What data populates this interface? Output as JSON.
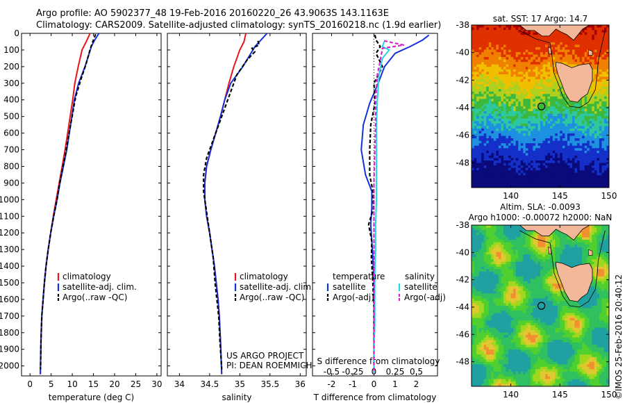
{
  "header": {
    "line1": "Argo profile: AO 5902377_48 19-Feb-2016 20160220_26 43.9063S 143.1163E",
    "line2": "Climatology: CARS2009. Satellite-adjusted climatology: synTS_20160218.nc (1.9d earlier)"
  },
  "colors": {
    "climatology": "#e8141c",
    "satellite": "#1530d8",
    "argo": "#000000",
    "satellite_s": "#20d8e8",
    "argo_s": "#e020d0"
  },
  "chart_data": [
    {
      "id": "temperature",
      "type": "line",
      "xlabel": "temperature (deg C)",
      "ylabel": "",
      "xlim": [
        -2,
        31
      ],
      "ylim": [
        2060,
        0
      ],
      "y_reversed": true,
      "xticks": [
        0,
        5,
        10,
        15,
        20,
        25,
        30
      ],
      "yticks": [
        0,
        100,
        200,
        300,
        400,
        500,
        600,
        700,
        800,
        900,
        1000,
        1100,
        1200,
        1300,
        1400,
        1500,
        1600,
        1700,
        1800,
        1900,
        2000
      ],
      "legend": [
        "climatology",
        "satellite-adj. clim.",
        "Argo(..raw -QC)"
      ],
      "series": [
        {
          "name": "climatology",
          "style": "solid",
          "color": "#e8141c",
          "x": [
            14.2,
            13.3,
            12.3,
            11.4,
            10.6,
            10.1,
            9.5,
            8.9,
            8.3,
            7.6,
            6.9,
            6.2,
            5.5,
            4.9,
            4.3,
            3.8,
            3.4,
            3.1,
            2.8,
            2.6,
            2.45
          ],
          "y": [
            0,
            50,
            100,
            200,
            300,
            400,
            500,
            600,
            700,
            800,
            900,
            1000,
            1100,
            1200,
            1300,
            1400,
            1500,
            1600,
            1700,
            1850,
            2050
          ]
        },
        {
          "name": "satellite-adj. clim.",
          "style": "solid",
          "color": "#1530d8",
          "x": [
            16.3,
            15.3,
            14.5,
            13.0,
            11.5,
            10.5,
            9.9,
            9.3,
            8.7,
            7.9,
            7.1,
            6.4,
            5.6,
            4.9,
            4.3,
            3.8,
            3.4,
            3.1,
            2.8,
            2.6,
            2.45
          ],
          "y": [
            0,
            40,
            80,
            200,
            300,
            400,
            500,
            600,
            700,
            800,
            900,
            1000,
            1100,
            1200,
            1300,
            1400,
            1500,
            1600,
            1700,
            1850,
            2050
          ]
        },
        {
          "name": "Argo(..raw -QC)",
          "style": "dashed",
          "color": "#000000",
          "x": [
            15.5,
            15.0,
            14.3,
            13.3,
            12.0,
            10.8,
            10.1,
            9.4,
            8.7,
            7.9,
            7.1,
            6.4,
            5.6,
            4.9,
            4.3,
            3.8,
            3.4,
            3.1,
            2.8,
            2.6,
            2.5
          ],
          "y": [
            5,
            40,
            90,
            180,
            280,
            380,
            480,
            580,
            680,
            790,
            890,
            1000,
            1100,
            1200,
            1300,
            1400,
            1500,
            1600,
            1700,
            1850,
            2020
          ]
        }
      ]
    },
    {
      "id": "salinity",
      "type": "line",
      "xlabel": "salinity",
      "ylabel": "",
      "xlim": [
        33.8,
        36.1
      ],
      "ylim": [
        2060,
        0
      ],
      "y_reversed": true,
      "xticks": [
        34,
        34.5,
        35,
        35.5,
        36
      ],
      "legend": [
        "climatology",
        "satellite-adj. clim.",
        "Argo(..raw -QC)"
      ],
      "annotations": [
        "US ARGO PROJECT",
        "PI: DEAN ROEMMICH"
      ],
      "series": [
        {
          "name": "climatology",
          "style": "solid",
          "color": "#e8141c",
          "x": [
            35.1,
            35.07,
            35.0,
            34.9,
            34.82,
            34.75,
            34.68,
            34.6,
            34.52,
            34.45,
            34.42,
            34.42,
            34.45,
            34.5,
            34.54,
            34.58,
            34.61,
            34.64,
            34.66,
            34.68,
            34.7
          ],
          "y": [
            0,
            50,
            100,
            200,
            300,
            400,
            500,
            600,
            700,
            800,
            900,
            1000,
            1100,
            1200,
            1300,
            1400,
            1500,
            1600,
            1700,
            1850,
            2050
          ]
        },
        {
          "name": "satellite-adj. clim.",
          "style": "solid",
          "color": "#1530d8",
          "x": [
            35.45,
            35.35,
            35.25,
            35.05,
            34.85,
            34.75,
            34.68,
            34.6,
            34.52,
            34.45,
            34.42,
            34.42,
            34.45,
            34.5,
            34.54,
            34.58,
            34.61,
            34.64,
            34.66,
            34.68,
            34.7
          ],
          "y": [
            0,
            40,
            80,
            200,
            300,
            400,
            500,
            600,
            700,
            800,
            900,
            1000,
            1100,
            1200,
            1300,
            1400,
            1500,
            1600,
            1700,
            1850,
            2050
          ]
        },
        {
          "name": "Argo(..raw -QC)",
          "style": "dashed",
          "color": "#000000",
          "x": [
            35.3,
            35.32,
            35.2,
            35.25,
            35.12,
            34.95,
            34.85,
            34.75,
            34.65,
            34.55,
            34.45,
            34.4,
            34.4,
            34.44,
            34.48,
            34.52,
            34.56,
            34.59,
            34.62,
            34.65,
            34.67,
            34.7
          ],
          "y": [
            45,
            70,
            90,
            110,
            160,
            250,
            350,
            450,
            550,
            650,
            750,
            850,
            950,
            1050,
            1150,
            1250,
            1350,
            1500,
            1600,
            1700,
            1850,
            2020
          ]
        }
      ]
    },
    {
      "id": "difference",
      "type": "line",
      "xlabel": "T difference from climatology",
      "xlabel2": "S difference from climatology",
      "xlim": [
        -2.9,
        3.0
      ],
      "xlim2": [
        -0.725,
        0.75
      ],
      "ylim": [
        2060,
        0
      ],
      "y_reversed": true,
      "xticks": [
        -2,
        -1,
        0,
        1,
        2
      ],
      "xtick_labels": [
        "-2",
        "-1",
        "0",
        "1",
        "2"
      ],
      "xticks2": [
        -0.5,
        -0.25,
        0,
        0.25,
        0.5
      ],
      "xtick_labels2": [
        "-0.5",
        "-0.25",
        "0",
        "0.25",
        "0.5"
      ],
      "legend_headers": [
        "temperature",
        "salinity"
      ],
      "legend": [
        "satellite",
        "Argo(-adj)",
        "satellite",
        "Argo(-adj)"
      ],
      "series": [
        {
          "name": "satellite",
          "group": "temperature",
          "style": "solid",
          "color": "#1530d8",
          "x": [
            2.6,
            2.3,
            1.7,
            1.0,
            0.5,
            0.2,
            -0.2,
            -0.5,
            -0.6,
            -0.4,
            -0.1,
            -0.1,
            -0.15,
            -0.1,
            -0.05,
            0,
            0,
            0,
            0,
            0
          ],
          "y": [
            10,
            40,
            80,
            120,
            200,
            300,
            420,
            550,
            700,
            850,
            950,
            1050,
            1150,
            1250,
            1350,
            1500,
            1650,
            1800,
            1950,
            2050
          ]
        },
        {
          "name": "Argo(-adj)",
          "group": "temperature",
          "style": "dashed",
          "color": "#000000",
          "x": [
            0.05,
            0.1,
            0.3,
            0.1,
            0.4,
            0.0,
            0.05,
            -0.15,
            -0.2,
            -0.2,
            -0.05,
            -0.02,
            -0.25,
            -0.1,
            -0.12,
            -0.05,
            0,
            0,
            0,
            0
          ],
          "y": [
            10,
            40,
            80,
            120,
            200,
            300,
            420,
            550,
            700,
            850,
            950,
            1050,
            1150,
            1250,
            1350,
            1500,
            1650,
            1800,
            1950,
            2050
          ]
        },
        {
          "name": "satellite",
          "group": "salinity",
          "style": "solid",
          "color": "#20d8e8",
          "x": [
            0.12,
            0.1,
            0.18,
            0.1,
            0.06,
            0.04,
            0.03,
            0.03,
            0.03,
            0.03,
            0.02,
            0.02,
            0.01,
            0.01,
            0.01,
            0.0,
            0.0
          ],
          "y": [
            50,
            80,
            100,
            150,
            250,
            400,
            550,
            700,
            850,
            1000,
            1150,
            1300,
            1450,
            1600,
            1750,
            1900,
            2050
          ]
        },
        {
          "name": "Argo(-adj)",
          "group": "salinity",
          "style": "dashed",
          "color": "#e020d0",
          "x": [
            0.12,
            0.35,
            0.1,
            0.08,
            0.04,
            0.02,
            0.02,
            0.01,
            0.0,
            0.0,
            0.0,
            0.0,
            0.0,
            0.0,
            0.0
          ],
          "y": [
            45,
            70,
            90,
            150,
            250,
            400,
            550,
            700,
            900,
            1100,
            1300,
            1500,
            1700,
            1900,
            2050
          ]
        }
      ]
    },
    {
      "id": "sst_map",
      "type": "heatmap",
      "title": "sat. SST: 17 Argo: 14.7",
      "xlim": [
        136,
        150
      ],
      "ylim": [
        -49.8,
        -38
      ],
      "xticks": [
        140,
        145,
        150
      ],
      "yticks": [
        -38,
        -40,
        -42,
        -44,
        -46,
        -48
      ],
      "marker": {
        "lon": 143.1163,
        "lat": -43.9063
      }
    },
    {
      "id": "sla_map",
      "type": "heatmap",
      "title": "Altim. SLA: -0.0093",
      "subtitle": "Argo h1000: -0.00072 h2000: NaN",
      "xlim": [
        136,
        150
      ],
      "ylim": [
        -49.8,
        -38
      ],
      "xticks": [
        140,
        145,
        150
      ],
      "yticks": [
        -38,
        -40,
        -42,
        -44,
        -46,
        -48
      ],
      "marker": {
        "lon": 143.1163,
        "lat": -43.9063
      }
    }
  ],
  "stamp": "©IMOS 25-Feb-2016 20:40:12"
}
